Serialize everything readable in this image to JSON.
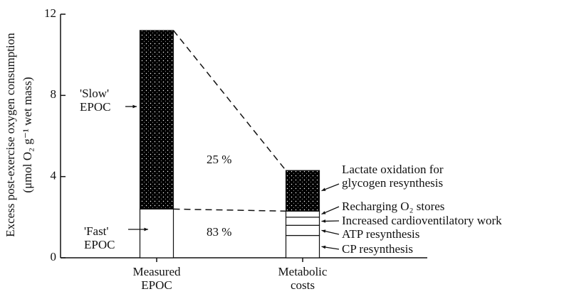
{
  "chart_data": {
    "type": "stacked_bar",
    "y_label": [
      "Excess post-exercise oxygen consumption",
      "(μmol O₂ g⁻¹ wet mass)"
    ],
    "categories": [
      "Measured EPOC",
      "Metabolic costs"
    ],
    "series": [
      {
        "name": "'Fast' EPOC",
        "color": "#ffffff",
        "values": [
          2.4,
          null
        ]
      },
      {
        "name": "'Slow' EPOC",
        "color": "#1a1a1a",
        "values": [
          8.8,
          null
        ]
      },
      {
        "name": "CP resynthesis",
        "color": "#ffffff",
        "values": [
          null,
          1.1
        ]
      },
      {
        "name": "ATP resynthesis",
        "color": "#ffffff",
        "values": [
          null,
          0.5
        ]
      },
      {
        "name": "Increased cardioventilatory work",
        "color": "#ffffff",
        "values": [
          null,
          0.4
        ]
      },
      {
        "name": "Recharging O₂ stores",
        "color": "#ffffff",
        "values": [
          null,
          0.3
        ]
      },
      {
        "name": "Lactate oxidation for glycogen resynthesis",
        "color": "#1a1a1a",
        "values": [
          null,
          2.0
        ]
      }
    ],
    "annotations": [
      "25 %",
      "83 %"
    ],
    "ylim": [
      0,
      12
    ],
    "yticks": [
      0,
      4,
      8,
      12
    ]
  }
}
